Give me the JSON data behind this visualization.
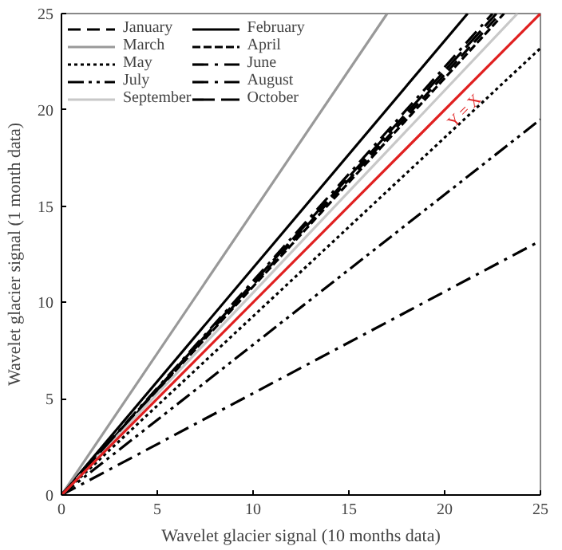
{
  "chart_data": {
    "type": "line",
    "xlabel": "Wavelet glacier signal (10 months data)",
    "ylabel": "Wavelet glacier signal (1 month data)",
    "xlim": [
      0,
      25
    ],
    "ylim": [
      0,
      25
    ],
    "xticks": [
      0,
      5,
      10,
      15,
      20,
      25
    ],
    "yticks": [
      0,
      5,
      10,
      15,
      20,
      25
    ],
    "grid": false,
    "legend": "top left",
    "marker": "none",
    "series": [
      {
        "name": "January",
        "color": "#000000",
        "line_style": "dashed",
        "x": [
          0,
          22.9
        ],
        "values": [
          0,
          25
        ]
      },
      {
        "name": "February",
        "color": "#000000",
        "line_style": "solid",
        "x": [
          0,
          21.2
        ],
        "values": [
          0,
          25
        ]
      },
      {
        "name": "March",
        "color": "#999999",
        "line_style": "solid",
        "x": [
          0,
          17.0
        ],
        "values": [
          0,
          25
        ]
      },
      {
        "name": "April",
        "color": "#000000",
        "line_style": "shortdash",
        "x": [
          0,
          23.1
        ],
        "values": [
          0,
          25
        ]
      },
      {
        "name": "May",
        "color": "#000000",
        "line_style": "dotted",
        "x": [
          0,
          25
        ],
        "values": [
          0,
          23.2
        ]
      },
      {
        "name": "June",
        "color": "#000000",
        "line_style": "dashdot",
        "x": [
          0,
          22.5
        ],
        "values": [
          0,
          25
        ]
      },
      {
        "name": "July",
        "color": "#000000",
        "line_style": "dashdotdot",
        "x": [
          0,
          25
        ],
        "values": [
          0,
          19.5
        ]
      },
      {
        "name": "August",
        "color": "#000000",
        "line_style": "dashdot",
        "x": [
          0,
          25
        ],
        "values": [
          0,
          13.2
        ]
      },
      {
        "name": "September",
        "color": "#c8c8c8",
        "line_style": "solid",
        "x": [
          0,
          23.8
        ],
        "values": [
          0,
          25
        ]
      },
      {
        "name": "October",
        "color": "#000000",
        "line_style": "longdash",
        "x": [
          0,
          22.7
        ],
        "values": [
          0,
          25
        ]
      },
      {
        "name": "Y = X",
        "color": "#e02020",
        "line_style": "solid",
        "x": [
          0,
          25
        ],
        "values": [
          0,
          25
        ]
      }
    ]
  }
}
